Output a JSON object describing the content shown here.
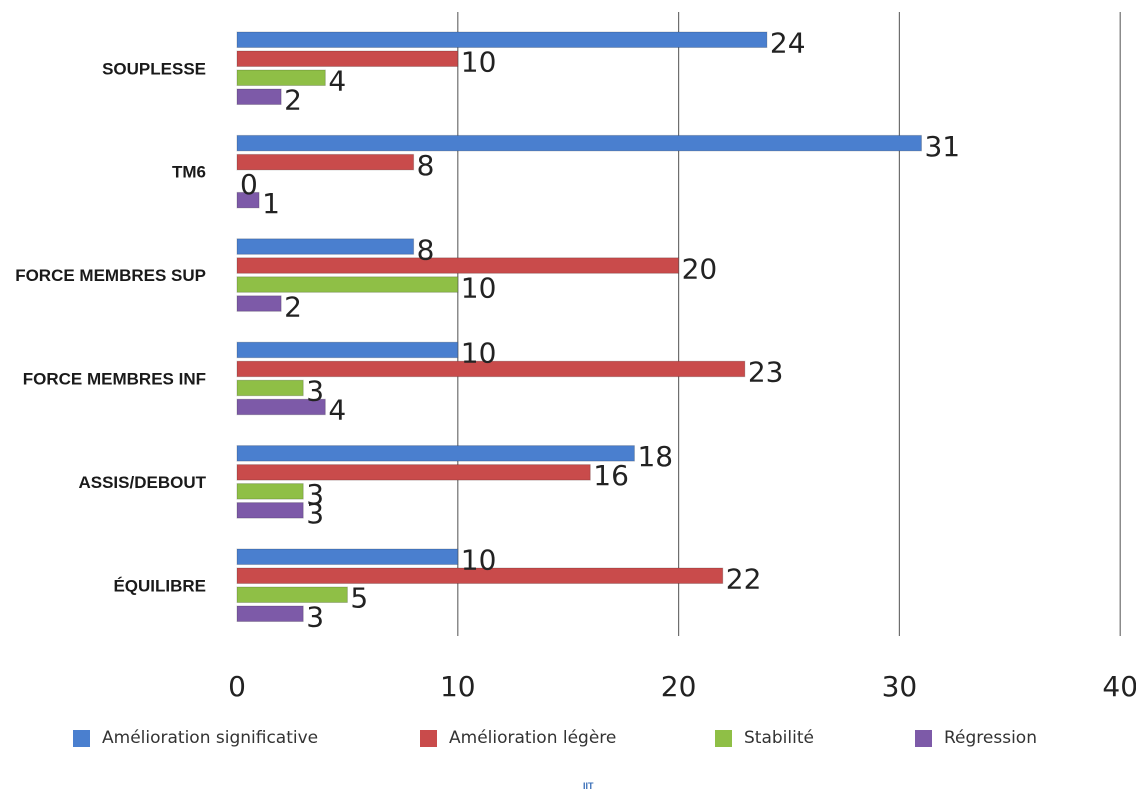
{
  "chart_data": {
    "type": "bar",
    "orientation": "horizontal",
    "categories": [
      "SOUPLESSE",
      "TM6",
      "FORCE MEMBRES SUP",
      "FORCE MEMBRES INF",
      "ASSIS/DEBOUT",
      "ÉQUILIBRE"
    ],
    "series": [
      {
        "name": "Amélioration significative",
        "color": "#4a7fcf",
        "values": [
          24,
          31,
          8,
          10,
          18,
          10
        ]
      },
      {
        "name": "Amélioration légère",
        "color": "#c94b4b",
        "values": [
          10,
          8,
          20,
          23,
          16,
          22
        ]
      },
      {
        "name": "Stabilité",
        "color": "#8fbf46",
        "values": [
          4,
          0,
          10,
          3,
          3,
          5
        ]
      },
      {
        "name": "Régression",
        "color": "#7d5aa8",
        "values": [
          2,
          1,
          2,
          4,
          3,
          3
        ]
      }
    ],
    "xticks": [
      "0",
      "10",
      "20",
      "30",
      "40"
    ],
    "xlim": [
      0,
      40
    ],
    "grid": true,
    "legend_position": "bottom"
  },
  "logo_text": "IIT"
}
